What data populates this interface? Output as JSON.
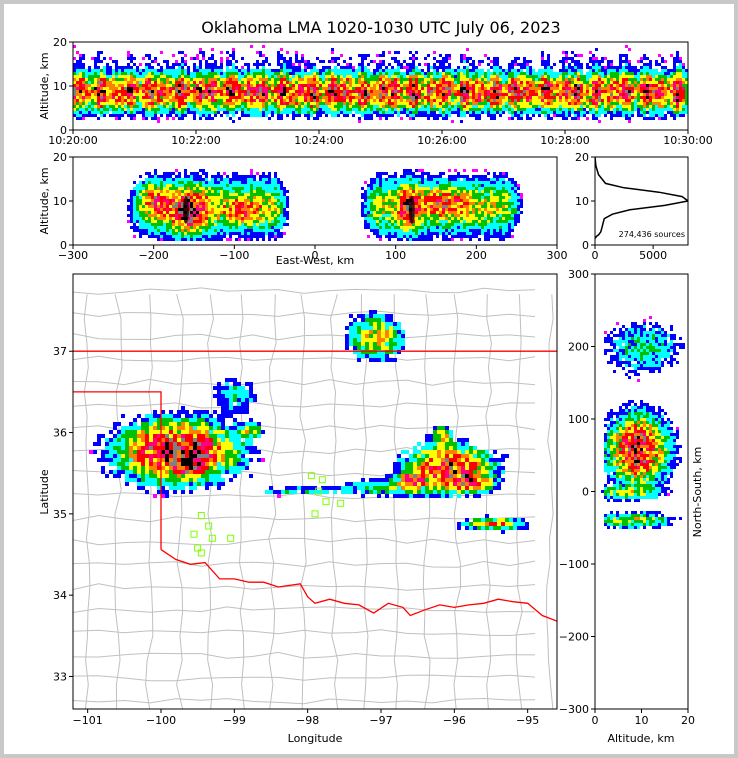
{
  "title": "Oklahoma LMA 1020-1030 UTC July 06, 2023",
  "colors": {
    "border": "#ff0000",
    "county": "#c0c0c0",
    "station": "#7fff00",
    "density_scale": [
      "#ffffff",
      "#ff00ff",
      "#0000ff",
      "#00ffff",
      "#00c000",
      "#ffff00",
      "#ff8000",
      "#ff0000",
      "#ff0080",
      "#808080",
      "#000000"
    ]
  },
  "chart_data": [
    {
      "type": "heatmap",
      "name": "altitude-time",
      "xlabel": "",
      "ylabel": "Altitude, km",
      "x_ticks": [
        "10:20:00",
        "10:22:00",
        "10:24:00",
        "10:26:00",
        "10:28:00",
        "10:30:00"
      ],
      "y_ticks": [
        "0",
        "10",
        "20"
      ],
      "xlim": [
        "10:20:00",
        "10:30:00"
      ],
      "ylim": [
        0,
        20
      ]
    },
    {
      "type": "heatmap",
      "name": "east-west-altitude",
      "xlabel": "East-West, km",
      "ylabel": "Altitude, km",
      "x_ticks": [
        "−300",
        "−200",
        "−100",
        "0",
        "100",
        "200",
        "300"
      ],
      "y_ticks": [
        "0",
        "10",
        "20"
      ],
      "xlim": [
        -300,
        300
      ],
      "ylim": [
        0,
        20
      ],
      "clusters": [
        {
          "x": -160,
          "y": 8
        },
        {
          "x": 120,
          "y": 8
        }
      ]
    },
    {
      "type": "line",
      "name": "altitude-histogram",
      "annotation": "274,436 sources",
      "x_ticks": [
        "0",
        "5000"
      ],
      "y_ticks": [
        "0",
        "10",
        "20"
      ],
      "xlim": [
        0,
        8000
      ],
      "ylim": [
        0,
        20
      ],
      "points": [
        [
          0,
          20
        ],
        [
          80,
          18
        ],
        [
          300,
          16
        ],
        [
          900,
          14
        ],
        [
          2500,
          13
        ],
        [
          5500,
          12
        ],
        [
          7500,
          11
        ],
        [
          8000,
          10
        ],
        [
          6000,
          9
        ],
        [
          3000,
          8
        ],
        [
          1500,
          7
        ],
        [
          800,
          6
        ],
        [
          700,
          5
        ],
        [
          600,
          4
        ],
        [
          500,
          3
        ],
        [
          300,
          2.3
        ],
        [
          150,
          2
        ],
        [
          0,
          1.5
        ]
      ]
    },
    {
      "type": "heatmap",
      "name": "plan-view",
      "xlabel": "Longitude",
      "ylabel": "Latitude",
      "x_ticks": [
        "−101",
        "−100",
        "−99",
        "−98",
        "−97",
        "−96",
        "−95"
      ],
      "y_ticks": [
        "33",
        "34",
        "35",
        "36",
        "37"
      ],
      "xlim": [
        -101.2,
        -94.6
      ],
      "ylim": [
        32.6,
        37.95
      ],
      "stations": [
        [
          -97.95,
          35.47
        ],
        [
          -97.8,
          35.42
        ],
        [
          -97.85,
          35.28
        ],
        [
          -97.75,
          35.15
        ],
        [
          -97.55,
          35.13
        ],
        [
          -97.9,
          35.0
        ],
        [
          -99.45,
          34.98
        ],
        [
          -99.35,
          34.85
        ],
        [
          -99.55,
          34.75
        ],
        [
          -99.3,
          34.7
        ],
        [
          -99.05,
          34.7
        ],
        [
          -99.5,
          34.58
        ],
        [
          -99.45,
          34.52
        ]
      ]
    },
    {
      "type": "heatmap",
      "name": "altitude-north-south",
      "xlabel": "Altitude, km",
      "ylabel": "North-South, km",
      "x_ticks": [
        "0",
        "10",
        "20"
      ],
      "y_ticks": [
        "−300",
        "−200",
        "−100",
        "0",
        "100",
        "200",
        "300"
      ],
      "xlim": [
        0,
        20
      ],
      "ylim": [
        -300,
        300
      ]
    }
  ]
}
